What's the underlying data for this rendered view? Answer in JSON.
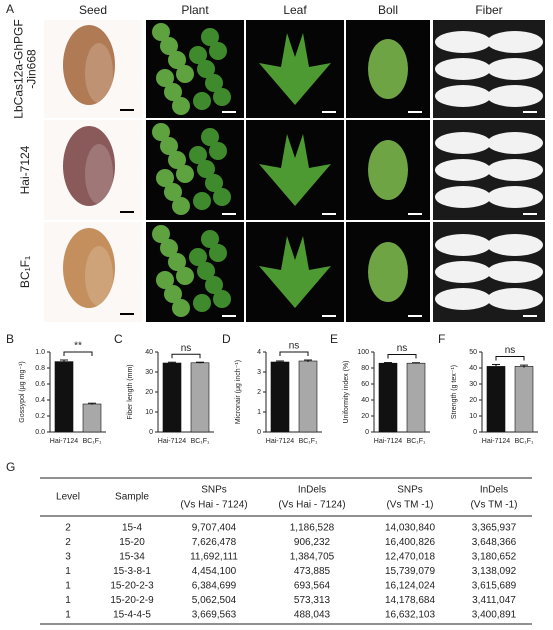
{
  "panel_a": {
    "label": "A",
    "columns": [
      "Seed",
      "Plant",
      "Leaf",
      "Boll",
      "Fiber"
    ],
    "rows": [
      [
        "LbCas12a-GhPGF",
        "-Jin668"
      ],
      [
        "Hai-7124"
      ],
      [
        "BC₁F₁"
      ]
    ]
  },
  "chart_data": [
    {
      "type": "bar",
      "label": "B",
      "y_label": "Gossypol (μg mg⁻¹)",
      "categories": [
        "Hai-7124",
        "BC₁F₁"
      ],
      "values": [
        0.88,
        0.35
      ],
      "errors": [
        0.02,
        0.01
      ],
      "colors": [
        "#111111",
        "#a8a8a8"
      ],
      "annotation": "**",
      "ylim": [
        0,
        1
      ],
      "yticks": [
        {
          "value": 0,
          "label": "0.0"
        },
        0.2,
        0.4,
        0.6,
        0.8,
        {
          "value": 1,
          "label": "1.0"
        }
      ]
    },
    {
      "type": "bar",
      "label": "C",
      "y_label": "Fiber length (mm)",
      "categories": [
        "Hai-7124",
        "BC₁F₁"
      ],
      "values": [
        34.5,
        34.6
      ],
      "errors": [
        0.4,
        0.3
      ],
      "colors": [
        "#111111",
        "#a8a8a8"
      ],
      "annotation": "ns",
      "ylim": [
        0,
        40
      ],
      "yticks": [
        0,
        10,
        20,
        30,
        40
      ]
    },
    {
      "type": "bar",
      "label": "D",
      "y_label": "Micronair (μg inch⁻¹)",
      "categories": [
        "Hai-7124",
        "BC₁F₁"
      ],
      "values": [
        3.5,
        3.55
      ],
      "errors": [
        0.05,
        0.05
      ],
      "colors": [
        "#111111",
        "#a8a8a8"
      ],
      "annotation": "ns",
      "ylim": [
        0,
        4
      ],
      "yticks": [
        0,
        1,
        2,
        3,
        4
      ]
    },
    {
      "type": "bar",
      "label": "E",
      "y_label": "Uniformity index (%)",
      "categories": [
        "Hai-7124",
        "BC₁F₁"
      ],
      "values": [
        86,
        86
      ],
      "errors": [
        0.8,
        0.6
      ],
      "colors": [
        "#111111",
        "#a8a8a8"
      ],
      "annotation": "ns",
      "ylim": [
        0,
        100
      ],
      "yticks": [
        0,
        20,
        40,
        60,
        80,
        100
      ]
    },
    {
      "type": "bar",
      "label": "F",
      "y_label": "Strength (g tex⁻¹)",
      "categories": [
        "Hai-7124",
        "BC₁F₁"
      ],
      "values": [
        41,
        41
      ],
      "errors": [
        1.2,
        0.8
      ],
      "colors": [
        "#111111",
        "#a8a8a8"
      ],
      "annotation": "ns",
      "ylim": [
        0,
        50
      ],
      "yticks": [
        0,
        10,
        20,
        30,
        40,
        50
      ]
    }
  ],
  "table": {
    "label": "G",
    "columns": [
      {
        "title": "Level"
      },
      {
        "title": "Sample"
      },
      {
        "title": "SNPs",
        "note": "(Vs Hai - 7124)"
      },
      {
        "title": "InDels",
        "note": "(Vs Hai - 7124)"
      },
      {
        "title": "SNPs",
        "note": "(Vs TM -1)"
      },
      {
        "title": "InDels",
        "note": "(Vs TM -1)"
      }
    ],
    "rows": [
      [
        "2",
        "15-4",
        "9,707,404",
        "1,186,528",
        "14,030,840",
        "3,365,937"
      ],
      [
        "2",
        "15-20",
        "7,626,478",
        "906,232",
        "16,400,826",
        "3,648,366"
      ],
      [
        "3",
        "15-34",
        "11,692,111",
        "1,384,705",
        "12,470,018",
        "3,180,652"
      ],
      [
        "1",
        "15-3-8-1",
        "4,454,100",
        "473,885",
        "15,739,079",
        "3,138,092"
      ],
      [
        "1",
        "15-20-2-3",
        "6,384,699",
        "693,564",
        "16,124,024",
        "3,615,689"
      ],
      [
        "1",
        "15-20-2-9",
        "5,062,504",
        "573,313",
        "14,178,684",
        "3,411,047"
      ],
      [
        "1",
        "15-4-4-5",
        "3,669,563",
        "488,043",
        "16,632,103",
        "3,400,891"
      ]
    ]
  }
}
